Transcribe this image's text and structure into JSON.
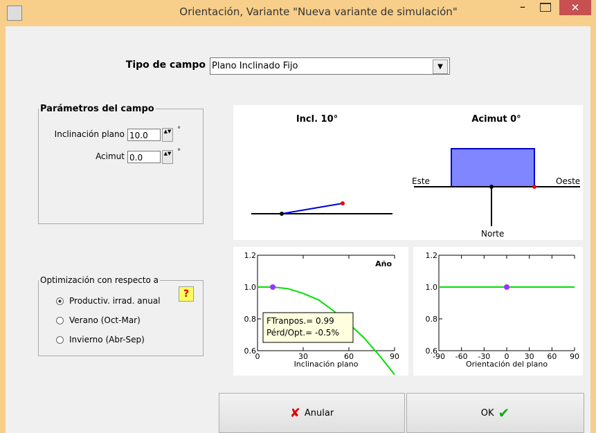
{
  "window": {
    "title": "Orientación, Variante \"Nueva variante de simulación\""
  },
  "field_type": {
    "label": "Tipo de campo",
    "value": "Plano Inclinado Fijo"
  },
  "params": {
    "legend": "Parámetros del campo",
    "fields": [
      {
        "label": "Inclinación plano",
        "value": "10.0",
        "unit": "°"
      },
      {
        "label": "Acimut",
        "value": "0.0",
        "unit": "°"
      }
    ]
  },
  "optimization": {
    "legend": "Optimización con respecto a",
    "help": "?",
    "selected": 0,
    "options": [
      "Productiv. irrad. anual",
      "Verano (Oct-Mar)",
      "Invierno (Abr-Sep)"
    ]
  },
  "diagram": {
    "incl_label": "Incl. 10°",
    "azimuth_label": "Acimut 0°",
    "east": "Este",
    "west": "Oeste",
    "north": "Norte"
  },
  "charts": [
    {
      "type": "line",
      "xlabel": "Inclinación plano",
      "corner_label": "Año",
      "xlim": [
        0,
        90
      ],
      "ylim": [
        0.6,
        1.2
      ],
      "xticks": [
        0,
        30,
        60,
        90
      ],
      "yticks": [
        {
          "value": 0.6,
          "label": "0.6"
        },
        {
          "value": 0.8,
          "label": "0.8"
        },
        {
          "value": 1.0,
          "label": "1.0"
        },
        {
          "value": 1.2,
          "label": "1.2"
        }
      ],
      "series": [
        {
          "color": "#00e000",
          "x": [
            0,
            10,
            20,
            30,
            40,
            50,
            60,
            70,
            80,
            90
          ],
          "values": [
            1.0,
            1.0,
            0.99,
            0.96,
            0.92,
            0.85,
            0.77,
            0.68,
            0.57,
            0.45
          ]
        }
      ],
      "point": {
        "x": 10,
        "y": 1.0,
        "color": "#9933ff"
      },
      "annotation": [
        "FTranpos.= 0.99",
        "Pérd/Opt.= -0.5%"
      ]
    },
    {
      "type": "line",
      "xlabel": "Orientación del plano",
      "xlim": [
        -90,
        90
      ],
      "ylim": [
        0.6,
        1.2
      ],
      "xticks": [
        -90,
        -60,
        -30,
        0,
        30,
        60,
        90
      ],
      "yticks": [
        {
          "value": 0.6,
          "label": "0.6"
        },
        {
          "value": 0.8,
          "label": "0.8"
        },
        {
          "value": 1.0,
          "label": "1.0"
        },
        {
          "value": 1.2,
          "label": "1.2"
        }
      ],
      "series": [
        {
          "color": "#00e000",
          "x": [
            -90,
            90
          ],
          "values": [
            1.0,
            1.0
          ]
        }
      ],
      "point": {
        "x": 0,
        "y": 1.0,
        "color": "#9933ff"
      }
    }
  ],
  "buttons": {
    "cancel": "Anular",
    "ok": "OK"
  }
}
